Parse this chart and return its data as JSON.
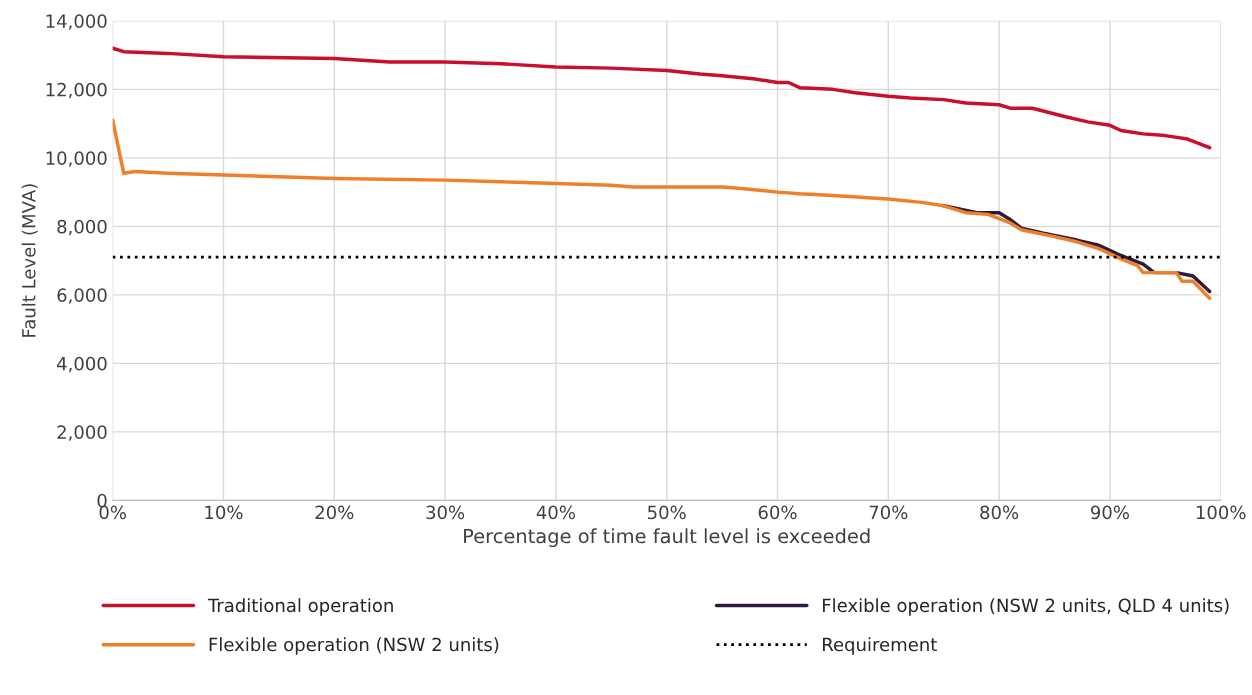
{
  "chart_data": {
    "type": "line",
    "xlabel": "Percentage of time fault level is exceeded",
    "ylabel": "Fault Level (MVA)",
    "xlim": [
      0,
      100
    ],
    "xticks": [
      {
        "value": 0,
        "label": "0%"
      },
      {
        "value": 10,
        "label": "10%"
      },
      {
        "value": 20,
        "label": "20%"
      },
      {
        "value": 30,
        "label": "30%"
      },
      {
        "value": 40,
        "label": "40%"
      },
      {
        "value": 50,
        "label": "50%"
      },
      {
        "value": 60,
        "label": "60%"
      },
      {
        "value": 70,
        "label": "70%"
      },
      {
        "value": 80,
        "label": "80%"
      },
      {
        "value": 90,
        "label": "90%"
      },
      {
        "value": 100,
        "label": "100%"
      }
    ],
    "ylim": [
      0,
      14000
    ],
    "yticks": [
      0,
      {
        "value": 2000,
        "label": "2,000"
      },
      {
        "value": 4000,
        "label": "4,000"
      },
      {
        "value": 6000,
        "label": "6,000"
      },
      {
        "value": 8000,
        "label": "8,000"
      },
      {
        "value": 10000,
        "label": "10,000"
      },
      {
        "value": 12000,
        "label": "12,000"
      },
      {
        "value": 14000,
        "label": "14,000"
      }
    ],
    "grid": true,
    "legend": "bottom",
    "marker": "none",
    "line_style": "solid",
    "series": [
      {
        "name": "Traditional operation",
        "color": "#c8102e",
        "x": [
          0,
          1,
          5,
          10,
          20,
          25,
          30,
          35,
          40,
          45,
          50,
          53,
          55,
          58,
          60,
          61,
          62,
          65,
          67,
          70,
          72,
          75,
          77,
          80,
          81,
          83,
          86,
          88,
          90,
          91,
          93,
          95,
          97,
          99
        ],
        "values": [
          13200,
          13100,
          13050,
          12950,
          12900,
          12800,
          12800,
          12750,
          12650,
          12620,
          12550,
          12450,
          12400,
          12300,
          12200,
          12200,
          12050,
          12000,
          11900,
          11800,
          11750,
          11700,
          11600,
          11550,
          11450,
          11450,
          11200,
          11050,
          10950,
          10800,
          10700,
          10650,
          10550,
          10300
        ]
      },
      {
        "name": "Flexible operation (NSW 2 units, QLD 4 units)",
        "color": "#2d1a3c",
        "x": [
          75,
          78,
          80,
          81,
          82,
          84,
          87,
          89,
          91,
          93,
          94,
          96,
          97.5,
          99
        ],
        "values": [
          8600,
          8400,
          8400,
          8200,
          7950,
          7800,
          7600,
          7450,
          7150,
          6900,
          6650,
          6650,
          6550,
          6100
        ]
      },
      {
        "name": "Flexible operation (NSW 2 units)",
        "color": "#f07f2a",
        "x": [
          0,
          1,
          2,
          5,
          10,
          15,
          20,
          30,
          35,
          40,
          45,
          47,
          55,
          57,
          60,
          62,
          65,
          70,
          73,
          75,
          77,
          79,
          81,
          82,
          85,
          87,
          89,
          91,
          92.5,
          93,
          96,
          96.5,
          97.5,
          99
        ],
        "values": [
          11100,
          9550,
          9600,
          9550,
          9500,
          9450,
          9400,
          9350,
          9300,
          9250,
          9200,
          9150,
          9150,
          9100,
          9000,
          8950,
          8900,
          8800,
          8700,
          8600,
          8400,
          8350,
          8100,
          7900,
          7700,
          7550,
          7350,
          7050,
          6850,
          6650,
          6650,
          6400,
          6400,
          5900
        ]
      }
    ],
    "ref_lines": [
      {
        "axis": "y",
        "value": 7100,
        "label": "Requirement",
        "color": "#000000",
        "line_style": "dotted"
      }
    ]
  }
}
